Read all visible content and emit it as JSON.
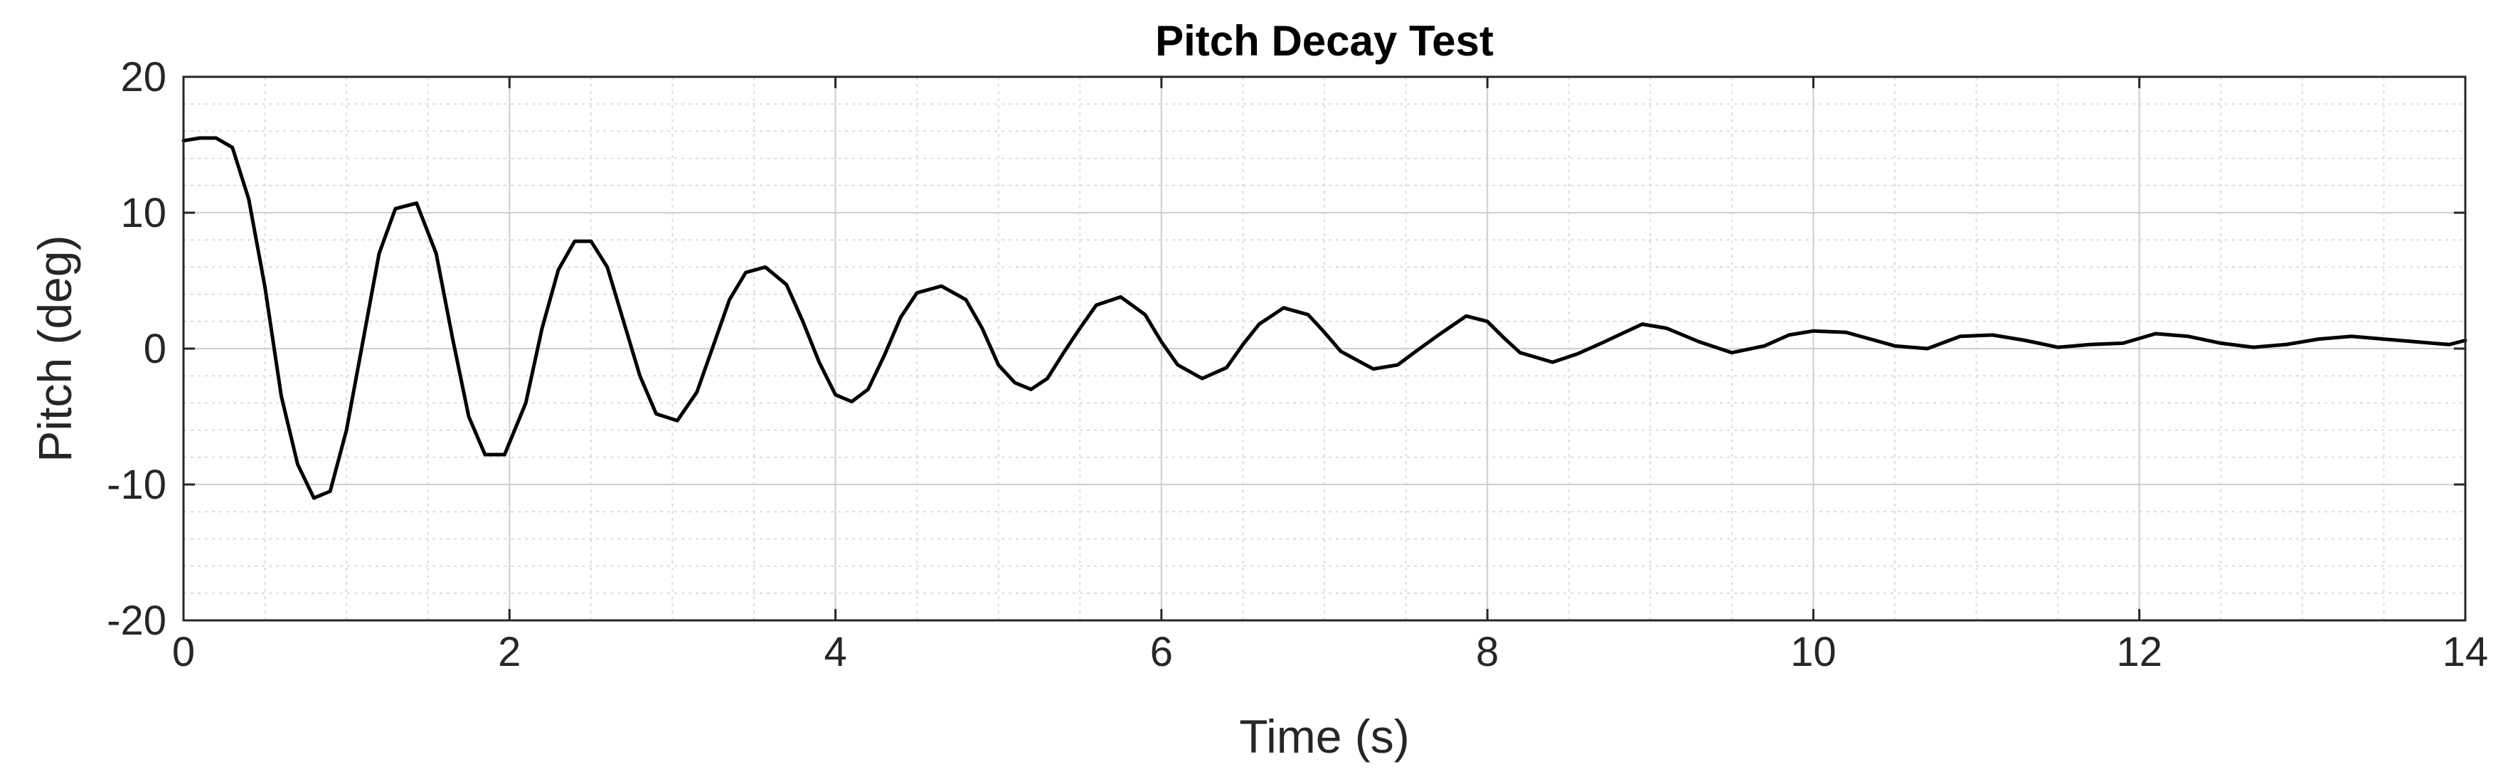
{
  "chart_data": {
    "type": "line",
    "title": "Pitch Decay Test",
    "xlabel": "Time (s)",
    "ylabel": "Pitch (deg)",
    "xlim": [
      0,
      14
    ],
    "ylim": [
      -20,
      20
    ],
    "xticks": [
      0,
      2,
      4,
      6,
      8,
      10,
      12,
      14
    ],
    "yticks": [
      -20,
      -10,
      0,
      10,
      20
    ],
    "xtick_labels": [
      "0",
      "2",
      "4",
      "6",
      "8",
      "10",
      "12",
      "14"
    ],
    "ytick_labels": [
      "-20",
      "-10",
      "0",
      "10",
      "20"
    ],
    "grid": true,
    "minor_grid": true,
    "line_color": "#000000",
    "series": [
      {
        "x": [
          0,
          0.1,
          0.2,
          0.3,
          0.4,
          0.5,
          0.6,
          0.7,
          0.8,
          0.9,
          1.0,
          1.1,
          1.2,
          1.3,
          1.43,
          1.55,
          1.65,
          1.75,
          1.85,
          1.97,
          2.1,
          2.2,
          2.3,
          2.4,
          2.5,
          2.6,
          2.7,
          2.8,
          2.9,
          3.03,
          3.15,
          3.25,
          3.35,
          3.45,
          3.57,
          3.7,
          3.8,
          3.9,
          4.0,
          4.1,
          4.2,
          4.3,
          4.4,
          4.5,
          4.65,
          4.8,
          4.9,
          5.0,
          5.1,
          5.2,
          5.3,
          5.4,
          5.5,
          5.6,
          5.75,
          5.9,
          6.0,
          6.1,
          6.25,
          6.4,
          6.5,
          6.6,
          6.75,
          6.9,
          7.0,
          7.1,
          7.3,
          7.45,
          7.55,
          7.7,
          7.87,
          8.0,
          8.1,
          8.2,
          8.4,
          8.55,
          8.7,
          8.95,
          9.1,
          9.3,
          9.5,
          9.7,
          9.85,
          10.0,
          10.2,
          10.5,
          10.7,
          10.9,
          11.1,
          11.3,
          11.5,
          11.7,
          11.9,
          12.1,
          12.3,
          12.5,
          12.7,
          12.9,
          13.1,
          13.3,
          13.5,
          13.7,
          13.9,
          14.0
        ],
        "y": [
          15.3,
          15.5,
          15.5,
          14.8,
          11.0,
          4.5,
          -3.5,
          -8.5,
          -11.0,
          -10.5,
          -6.0,
          0.5,
          7.0,
          10.3,
          10.7,
          7.0,
          0.8,
          -5.0,
          -7.8,
          -7.8,
          -4.0,
          1.5,
          5.8,
          7.9,
          7.9,
          6.0,
          2.0,
          -2.0,
          -4.8,
          -5.3,
          -3.2,
          0.2,
          3.6,
          5.6,
          6.0,
          4.7,
          2.0,
          -1.0,
          -3.4,
          -3.9,
          -3.0,
          -0.5,
          2.3,
          4.1,
          4.6,
          3.6,
          1.5,
          -1.2,
          -2.5,
          -3.0,
          -2.2,
          -0.3,
          1.5,
          3.2,
          3.8,
          2.5,
          0.5,
          -1.2,
          -2.2,
          -1.4,
          0.3,
          1.8,
          3.0,
          2.5,
          1.2,
          -0.2,
          -1.5,
          -1.2,
          -0.3,
          1.0,
          2.4,
          2.0,
          0.8,
          -0.3,
          -1.0,
          -0.4,
          0.4,
          1.8,
          1.5,
          0.5,
          -0.3,
          0.2,
          1.0,
          1.3,
          1.2,
          0.2,
          0.0,
          0.9,
          1.0,
          0.6,
          0.1,
          0.3,
          0.4,
          1.1,
          0.9,
          0.4,
          0.1,
          0.3,
          0.7,
          0.9,
          0.7,
          0.5,
          0.3,
          0.6
        ]
      }
    ]
  }
}
